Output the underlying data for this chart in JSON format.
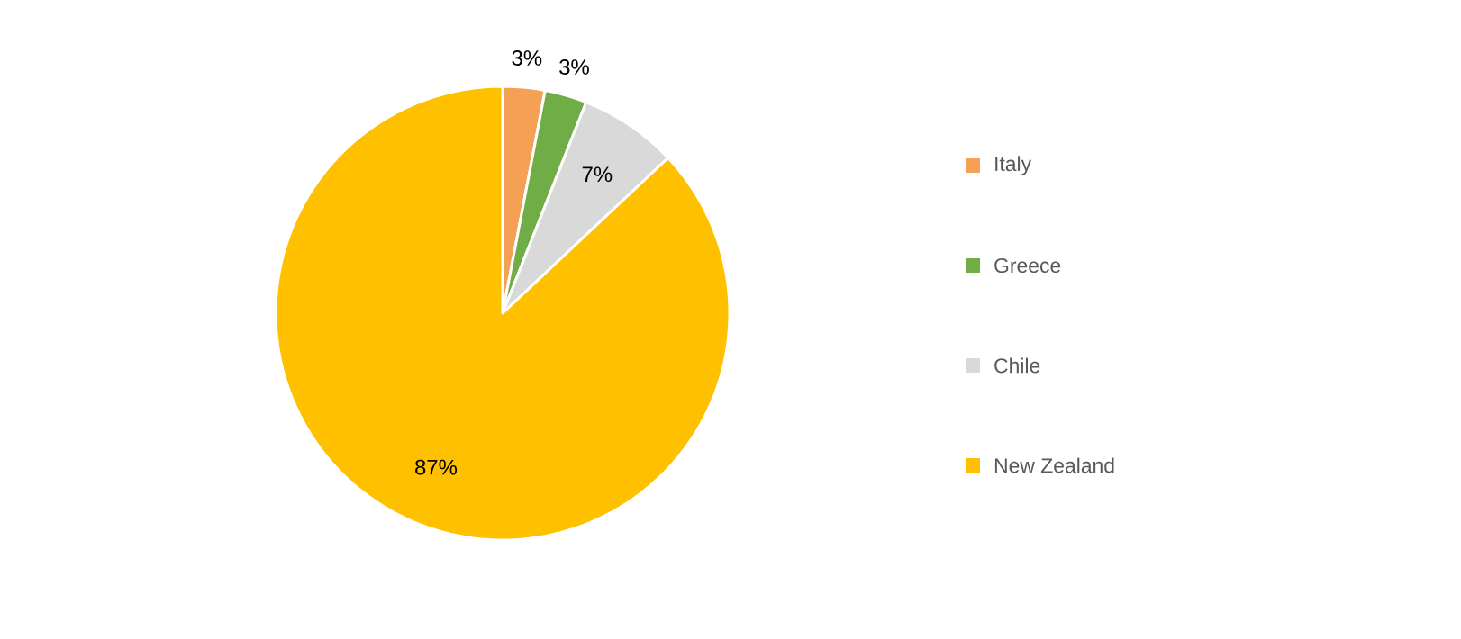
{
  "chart_data": {
    "type": "pie",
    "categories": [
      "Italy",
      "Greece",
      "Chile",
      "New Zealand"
    ],
    "values": [
      3,
      3,
      7,
      87
    ],
    "colors": [
      "#f5a155",
      "#70ad47",
      "#d9d9d9",
      "#ffc000"
    ],
    "value_labels": [
      "3%",
      "3%",
      "7%",
      "87%"
    ],
    "legend": "right"
  }
}
